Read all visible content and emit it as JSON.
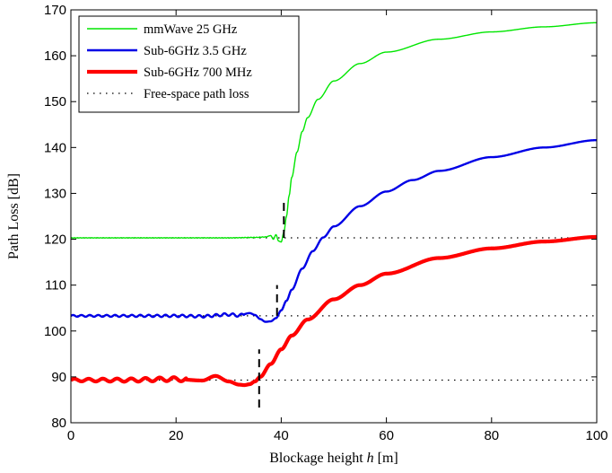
{
  "chart_data": {
    "type": "line",
    "title": "",
    "xlabel": "Blockage height",
    "xlabel_var": "h",
    "xlabel_unit": "[m]",
    "ylabel": "Path Loss [dB]",
    "xlim": [
      0,
      100
    ],
    "ylim": [
      80,
      170
    ],
    "xticks": [
      0,
      20,
      40,
      60,
      80,
      100
    ],
    "yticks": [
      80,
      90,
      100,
      110,
      120,
      130,
      140,
      150,
      160,
      170
    ],
    "grid": false,
    "legend_position": "top-left",
    "series": [
      {
        "name": "mmWave 25 GHz",
        "color": "#00e600",
        "style": "solid",
        "line_weight": "thin",
        "baseline": 120.3,
        "x": [
          0,
          10,
          20,
          30,
          35,
          37,
          38,
          38.5,
          39,
          39.5,
          40,
          40.5,
          41,
          41.5,
          42,
          43,
          44,
          45,
          47,
          50,
          55,
          60,
          70,
          80,
          90,
          100
        ],
        "y": [
          120.3,
          120.3,
          120.3,
          120.3,
          120.4,
          120.5,
          120.8,
          120.0,
          121.0,
          119.6,
          119.4,
          121.5,
          125.0,
          129.5,
          133.5,
          139.0,
          143.5,
          146.5,
          150.5,
          154.5,
          158.3,
          160.8,
          163.6,
          165.2,
          166.3,
          167.2
        ]
      },
      {
        "name": "Sub-6GHz 3.5 GHz",
        "color": "#0000e6",
        "style": "solid",
        "line_weight": "medium",
        "baseline": 103.3,
        "x": [
          0,
          10,
          20,
          25,
          30,
          32,
          34,
          35,
          36,
          37,
          38,
          39,
          40,
          41,
          42,
          44,
          46,
          48,
          50,
          55,
          60,
          65,
          70,
          80,
          90,
          100
        ],
        "y": [
          103.3,
          103.3,
          103.3,
          103.2,
          103.6,
          103.4,
          103.9,
          103.5,
          102.6,
          102.0,
          102.1,
          102.8,
          104.5,
          106.6,
          109.0,
          113.6,
          117.4,
          120.4,
          122.8,
          127.2,
          130.4,
          132.9,
          134.9,
          137.9,
          140.0,
          141.6
        ]
      },
      {
        "name": "Sub-6GHz 700 MHz",
        "color": "#ff0000",
        "style": "solid",
        "line_weight": "thick",
        "baseline": 89.3,
        "x": [
          0,
          10,
          20,
          25,
          27.5,
          30,
          32,
          33,
          34,
          35,
          36,
          38,
          40,
          42,
          45,
          50,
          55,
          60,
          70,
          80,
          90,
          100
        ],
        "y": [
          89.3,
          89.3,
          89.5,
          89.2,
          90.2,
          89.0,
          88.3,
          88.2,
          88.4,
          89.0,
          90.0,
          92.8,
          96.0,
          99.0,
          102.5,
          106.9,
          110.0,
          112.5,
          115.9,
          118.0,
          119.5,
          120.5
        ]
      },
      {
        "name": "Free-space path loss",
        "color": "#000000",
        "style": "dotted",
        "levels": [
          120.3,
          103.3,
          89.3
        ]
      }
    ],
    "annotations": [
      {
        "type": "vertical-dashed-line",
        "x": 40.5,
        "y_range": [
          120.3,
          128.0
        ]
      },
      {
        "type": "vertical-dashed-line",
        "x": 39.2,
        "y_range": [
          103.3,
          110.0
        ]
      },
      {
        "type": "vertical-dashed-line",
        "x": 35.8,
        "y_range": [
          83.3,
          96.0
        ]
      }
    ]
  }
}
